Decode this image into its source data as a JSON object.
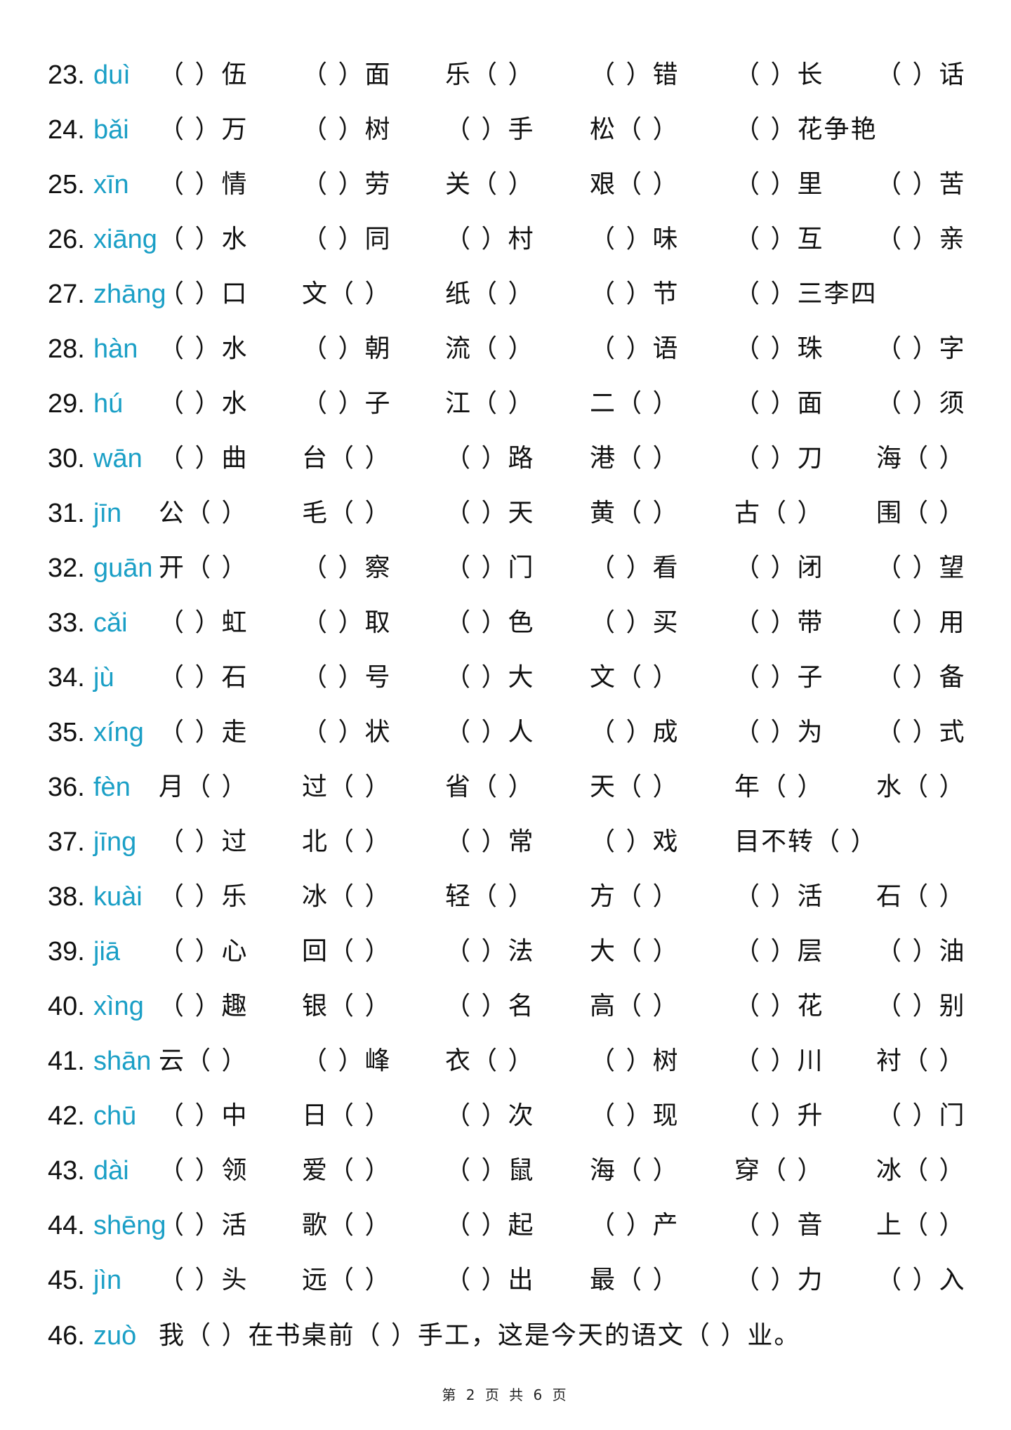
{
  "pinyin_color": "#1a9fc6",
  "rows": [
    {
      "num": "23.",
      "pinyin": "duì",
      "cells": [
        "（ ）伍",
        "（ ）面",
        "乐（ ）",
        "（ ）错",
        "（ ）长",
        "（ ）话"
      ]
    },
    {
      "num": "24.",
      "pinyin": "bǎi",
      "cells": [
        "（ ）万",
        "（ ）树",
        "（ ）手",
        "松（ ）",
        "（ ）花争艳"
      ]
    },
    {
      "num": "25.",
      "pinyin": "xīn",
      "cells": [
        "（ ）情",
        "（ ）劳",
        "关（ ）",
        "艰（ ）",
        "（ ）里",
        "（ ）苦"
      ]
    },
    {
      "num": "26.",
      "pinyin": "xiāng",
      "cells": [
        "（ ）水",
        "（ ）同",
        "（ ）村",
        "（ ）味",
        "（ ）互",
        "（ ）亲"
      ]
    },
    {
      "num": "27.",
      "pinyin": "zhāng",
      "cells": [
        "（ ）口",
        "文（ ）",
        "纸（ ）",
        "（ ）节",
        "（ ）三李四"
      ]
    },
    {
      "num": "28.",
      "pinyin": "hàn",
      "cells": [
        "（ ）水",
        "（ ）朝",
        "流（ ）",
        "（ ）语",
        "（ ）珠",
        "（ ）字"
      ]
    },
    {
      "num": "29.",
      "pinyin": "hú",
      "cells": [
        "（ ）水",
        "（ ）子",
        "江（ ）",
        "二（ ）",
        "（ ）面",
        "（ ）须"
      ]
    },
    {
      "num": "30.",
      "pinyin": "wān",
      "cells": [
        "（ ）曲",
        "台（ ）",
        "（ ）路",
        "港（ ）",
        "（ ）刀",
        "海（ ）"
      ]
    },
    {
      "num": "31.",
      "pinyin": "jīn",
      "cells": [
        "公（ ）",
        "毛（ ）",
        "（ ）天",
        "黄（ ）",
        "古（ ）",
        "围（ ）"
      ]
    },
    {
      "num": "32.",
      "pinyin": "guān",
      "cells": [
        "开（ ）",
        "（ ）察",
        "（ ）门",
        "（ ）看",
        "（ ）闭",
        "（ ）望"
      ]
    },
    {
      "num": "33.",
      "pinyin": "cǎi",
      "cells": [
        "（ ）虹",
        "（ ）取",
        "（ ）色",
        "（ ）买",
        "（ ）带",
        "（ ）用"
      ]
    },
    {
      "num": "34.",
      "pinyin": "jù",
      "cells": [
        "（ ）石",
        "（ ）号",
        "（ ）大",
        "文（ ）",
        "（ ）子",
        "（ ）备"
      ]
    },
    {
      "num": "35.",
      "pinyin": "xíng",
      "cells": [
        "（ ）走",
        "（ ）状",
        "（ ）人",
        "（ ）成",
        "（ ）为",
        "（ ）式"
      ]
    },
    {
      "num": "36.",
      "pinyin": "fèn",
      "cells": [
        "月（ ）",
        "过（ ）",
        "省（ ）",
        "天（ ）",
        "年（ ）",
        "水（ ）"
      ]
    },
    {
      "num": "37.",
      "pinyin": "jīng",
      "cells": [
        "（ ）过",
        "北（ ）",
        "（ ）常",
        "（ ）戏",
        "目不转（ ）"
      ]
    },
    {
      "num": "38.",
      "pinyin": "kuài",
      "cells": [
        "（ ）乐",
        "冰（ ）",
        "轻（ ）",
        "方（ ）",
        "（ ）活",
        "石（ ）"
      ]
    },
    {
      "num": "39.",
      "pinyin": "jiā",
      "cells": [
        "（ ）心",
        "回（ ）",
        "（ ）法",
        "大（ ）",
        "（ ）层",
        "（ ）油"
      ]
    },
    {
      "num": "40.",
      "pinyin": "xìng",
      "cells": [
        "（ ）趣",
        "银（ ）",
        "（ ）名",
        "高（ ）",
        "（ ）花",
        "（ ）别"
      ]
    },
    {
      "num": "41.",
      "pinyin": "shān",
      "cells": [
        "云（ ）",
        "（ ）峰",
        "衣（ ）",
        "（ ）树",
        "（ ）川",
        "衬（ ）"
      ]
    },
    {
      "num": "42.",
      "pinyin": "chū",
      "cells": [
        "（ ）中",
        "日（ ）",
        "（ ）次",
        "（ ）现",
        "（ ）升",
        "（ ）门"
      ]
    },
    {
      "num": "43.",
      "pinyin": "dài",
      "cells": [
        "（ ）领",
        "爱（ ）",
        "（ ）鼠",
        "海（ ）",
        "穿（ ）",
        "冰（ ）"
      ]
    },
    {
      "num": "44.",
      "pinyin": "shēng",
      "cells": [
        "（ ）活",
        "歌（ ）",
        "（ ）起",
        "（ ）产",
        "（ ）音",
        "上（ ）"
      ]
    },
    {
      "num": "45.",
      "pinyin": "jìn",
      "cells": [
        "（ ）头",
        "远（ ）",
        "（ ）出",
        "最（ ）",
        "（ ）力",
        "（ ）入"
      ]
    }
  ],
  "last_row": {
    "num": "46.",
    "pinyin": "zuò",
    "sentence": "我（ ）在书桌前（ ）手工，这是今天的语文（ ）业。"
  },
  "footer": "第 2 页 共 6 页"
}
